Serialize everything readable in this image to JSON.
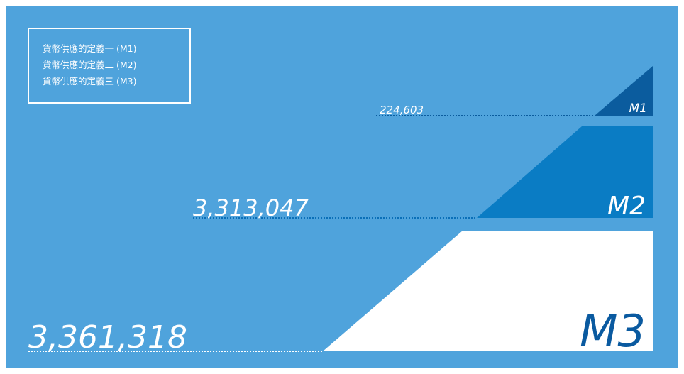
{
  "legend": [
    "貨幣供應的定義一 (M1)",
    "貨幣供應的定義二 (M2)",
    "貨幣供應的定義三 (M3)"
  ],
  "items": [
    {
      "label": "M1",
      "value": "224,603"
    },
    {
      "label": "M2",
      "value": "3,313,047"
    },
    {
      "label": "M3",
      "value": "3,361,318"
    }
  ]
}
